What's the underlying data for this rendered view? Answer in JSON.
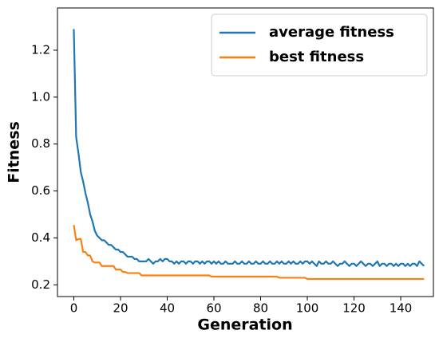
{
  "chart_data": {
    "type": "line",
    "xlabel": "Generation",
    "ylabel": "Fitness",
    "x": [
      0,
      1,
      2,
      3,
      4,
      5,
      6,
      7,
      8,
      9,
      10,
      11,
      12,
      13,
      14,
      15,
      16,
      17,
      18,
      19,
      20,
      21,
      22,
      23,
      24,
      25,
      26,
      27,
      28,
      29,
      30,
      31,
      32,
      33,
      34,
      35,
      36,
      37,
      38,
      39,
      40,
      41,
      42,
      43,
      44,
      45,
      46,
      47,
      48,
      49,
      50,
      51,
      52,
      53,
      54,
      55,
      56,
      57,
      58,
      59,
      60,
      61,
      62,
      63,
      64,
      65,
      66,
      67,
      68,
      69,
      70,
      71,
      72,
      73,
      74,
      75,
      76,
      77,
      78,
      79,
      80,
      81,
      82,
      83,
      84,
      85,
      86,
      87,
      88,
      89,
      90,
      91,
      92,
      93,
      94,
      95,
      96,
      97,
      98,
      99,
      100,
      101,
      102,
      103,
      104,
      105,
      106,
      107,
      108,
      109,
      110,
      111,
      112,
      113,
      114,
      115,
      116,
      117,
      118,
      119,
      120,
      121,
      122,
      123,
      124,
      125,
      126,
      127,
      128,
      129,
      130,
      131,
      132,
      133,
      134,
      135,
      136,
      137,
      138,
      139,
      140,
      141,
      142,
      143,
      144,
      145,
      146,
      147,
      148,
      149,
      150
    ],
    "series": [
      {
        "name": "average fitness",
        "color": "#1f77b4",
        "values": [
          1.29,
          0.83,
          0.76,
          0.68,
          0.64,
          0.59,
          0.55,
          0.5,
          0.47,
          0.43,
          0.41,
          0.4,
          0.39,
          0.39,
          0.38,
          0.37,
          0.37,
          0.36,
          0.35,
          0.35,
          0.34,
          0.34,
          0.33,
          0.32,
          0.32,
          0.32,
          0.31,
          0.31,
          0.3,
          0.3,
          0.3,
          0.3,
          0.31,
          0.3,
          0.29,
          0.3,
          0.3,
          0.31,
          0.3,
          0.31,
          0.31,
          0.3,
          0.3,
          0.29,
          0.3,
          0.29,
          0.3,
          0.3,
          0.29,
          0.3,
          0.3,
          0.29,
          0.3,
          0.3,
          0.29,
          0.3,
          0.29,
          0.3,
          0.3,
          0.29,
          0.3,
          0.29,
          0.3,
          0.29,
          0.29,
          0.3,
          0.29,
          0.29,
          0.29,
          0.3,
          0.29,
          0.29,
          0.3,
          0.29,
          0.29,
          0.3,
          0.29,
          0.29,
          0.3,
          0.29,
          0.29,
          0.3,
          0.29,
          0.29,
          0.3,
          0.29,
          0.29,
          0.3,
          0.29,
          0.3,
          0.29,
          0.29,
          0.3,
          0.29,
          0.3,
          0.29,
          0.29,
          0.3,
          0.29,
          0.3,
          0.3,
          0.29,
          0.3,
          0.29,
          0.28,
          0.3,
          0.29,
          0.29,
          0.3,
          0.29,
          0.29,
          0.3,
          0.29,
          0.28,
          0.29,
          0.29,
          0.3,
          0.29,
          0.28,
          0.29,
          0.29,
          0.28,
          0.29,
          0.3,
          0.29,
          0.28,
          0.29,
          0.29,
          0.28,
          0.29,
          0.3,
          0.28,
          0.29,
          0.29,
          0.28,
          0.29,
          0.29,
          0.28,
          0.29,
          0.28,
          0.29,
          0.29,
          0.28,
          0.29,
          0.28,
          0.29,
          0.29,
          0.28,
          0.3,
          0.29,
          0.28
        ]
      },
      {
        "name": "best fitness",
        "color": "#ff7f0e",
        "values": [
          0.455,
          0.39,
          0.395,
          0.395,
          0.34,
          0.34,
          0.325,
          0.325,
          0.3,
          0.295,
          0.295,
          0.295,
          0.28,
          0.28,
          0.28,
          0.28,
          0.28,
          0.28,
          0.265,
          0.265,
          0.265,
          0.255,
          0.255,
          0.25,
          0.25,
          0.25,
          0.25,
          0.25,
          0.25,
          0.24,
          0.24,
          0.24,
          0.24,
          0.24,
          0.24,
          0.24,
          0.24,
          0.24,
          0.24,
          0.24,
          0.24,
          0.24,
          0.24,
          0.24,
          0.24,
          0.24,
          0.24,
          0.24,
          0.24,
          0.24,
          0.24,
          0.24,
          0.24,
          0.24,
          0.24,
          0.24,
          0.24,
          0.24,
          0.24,
          0.235,
          0.235,
          0.235,
          0.235,
          0.235,
          0.235,
          0.235,
          0.235,
          0.235,
          0.235,
          0.235,
          0.235,
          0.235,
          0.235,
          0.235,
          0.235,
          0.235,
          0.235,
          0.235,
          0.235,
          0.235,
          0.235,
          0.235,
          0.235,
          0.235,
          0.235,
          0.235,
          0.235,
          0.235,
          0.23,
          0.23,
          0.23,
          0.23,
          0.23,
          0.23,
          0.23,
          0.23,
          0.23,
          0.23,
          0.23,
          0.23,
          0.225,
          0.225,
          0.225,
          0.225,
          0.225,
          0.225,
          0.225,
          0.225,
          0.225,
          0.225,
          0.225,
          0.225,
          0.225,
          0.225,
          0.225,
          0.225,
          0.225,
          0.225,
          0.225,
          0.225,
          0.225,
          0.225,
          0.225,
          0.225,
          0.225,
          0.225,
          0.225,
          0.225,
          0.225,
          0.225,
          0.225,
          0.225,
          0.225,
          0.225,
          0.225,
          0.225,
          0.225,
          0.225,
          0.225,
          0.225,
          0.225,
          0.225,
          0.225,
          0.225,
          0.225,
          0.225,
          0.225,
          0.225,
          0.225,
          0.225,
          0.225
        ]
      }
    ],
    "xlim": [
      -7,
      154
    ],
    "xticks": [
      0,
      20,
      40,
      60,
      80,
      100,
      120,
      140
    ],
    "ylim": [
      0.15,
      1.38
    ],
    "yticks": [
      0.2,
      0.4,
      0.6,
      0.8,
      {
        "value": 1,
        "label": "1.0"
      },
      1.2
    ],
    "grid": false,
    "legend": "upper right"
  }
}
